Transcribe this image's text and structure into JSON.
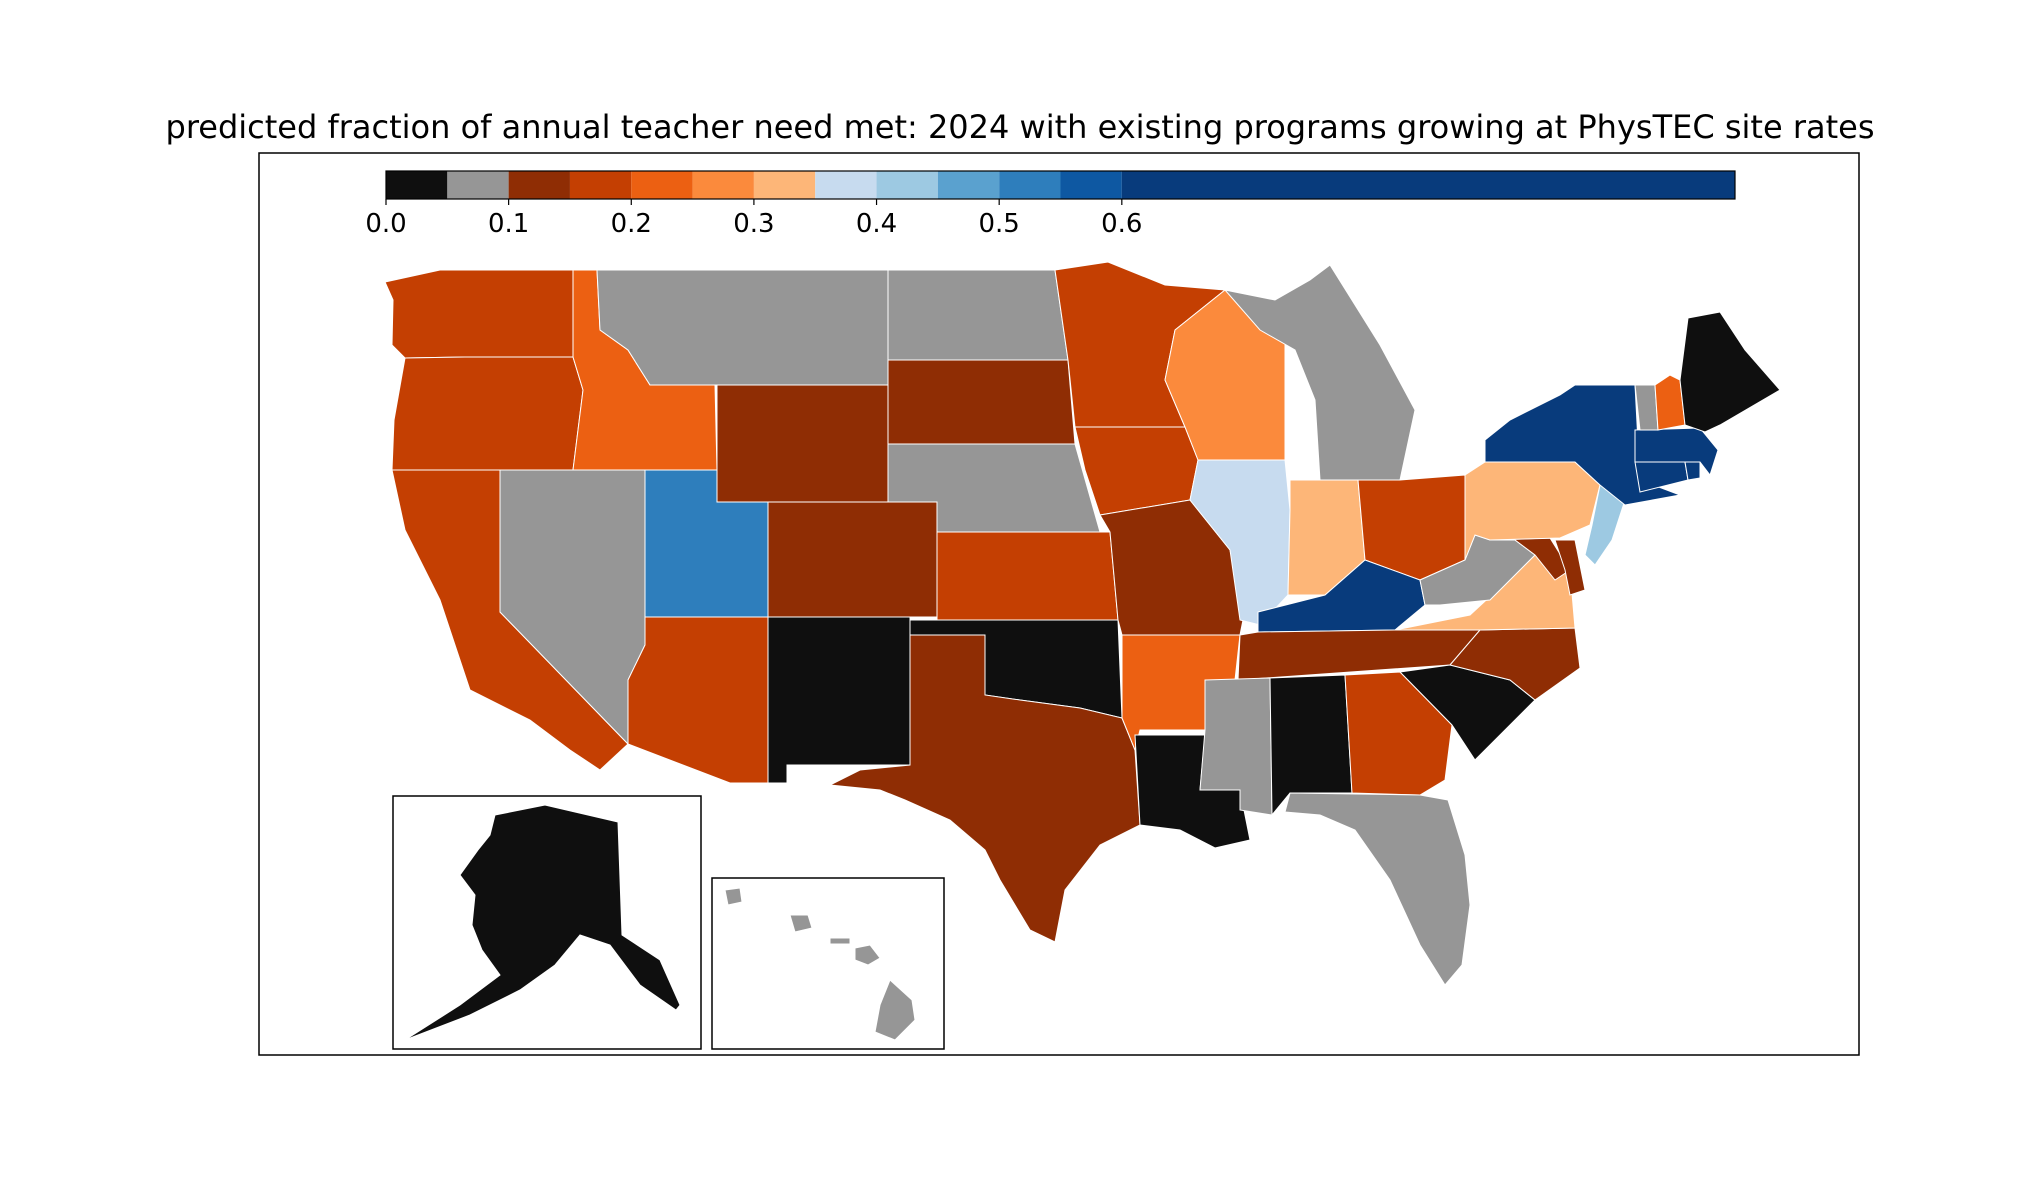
{
  "title": "predicted fraction of annual teacher need met: 2024 with existing programs growing at PhysTEC site rates",
  "colorbar": {
    "bins": [
      {
        "from": 0.0,
        "to": 0.05,
        "color": "#0f0f0f"
      },
      {
        "from": 0.05,
        "to": 0.1,
        "color": "#969696"
      },
      {
        "from": 0.1,
        "to": 0.15,
        "color": "#8f2d04"
      },
      {
        "from": 0.15,
        "to": 0.2,
        "color": "#c43f02"
      },
      {
        "from": 0.2,
        "to": 0.25,
        "color": "#ec6012"
      },
      {
        "from": 0.25,
        "to": 0.3,
        "color": "#fb8a3c"
      },
      {
        "from": 0.3,
        "to": 0.35,
        "color": "#fdb678"
      },
      {
        "from": 0.35,
        "to": 0.4,
        "color": "#c7dbef"
      },
      {
        "from": 0.4,
        "to": 0.45,
        "color": "#9dc9e2"
      },
      {
        "from": 0.45,
        "to": 0.5,
        "color": "#5aa1cf"
      },
      {
        "from": 0.5,
        "to": 0.55,
        "color": "#2e7ebc"
      },
      {
        "from": 0.55,
        "to": 0.6,
        "color": "#0e58a2"
      },
      {
        "from": 0.6,
        "to": 1.1,
        "color": "#083b7c"
      }
    ],
    "range": [
      0.0,
      1.1
    ],
    "ticks": [
      "0.0",
      "0.1",
      "0.2",
      "0.3",
      "0.4",
      "0.5",
      "0.6"
    ]
  },
  "map_data": {
    "units": "fraction of annual teacher need met",
    "states": [
      {
        "code": "WA",
        "value": 0.18
      },
      {
        "code": "OR",
        "value": 0.18
      },
      {
        "code": "CA",
        "value": 0.18
      },
      {
        "code": "ID",
        "value": 0.23
      },
      {
        "code": "NV",
        "value": 0.08
      },
      {
        "code": "MT",
        "value": 0.08
      },
      {
        "code": "WY",
        "value": 0.13
      },
      {
        "code": "UT",
        "value": 0.52
      },
      {
        "code": "AZ",
        "value": 0.18
      },
      {
        "code": "CO",
        "value": 0.13
      },
      {
        "code": "NM",
        "value": 0.02
      },
      {
        "code": "ND",
        "value": 0.08
      },
      {
        "code": "SD",
        "value": 0.13
      },
      {
        "code": "NE",
        "value": 0.08
      },
      {
        "code": "KS",
        "value": 0.18
      },
      {
        "code": "OK",
        "value": 0.02
      },
      {
        "code": "TX",
        "value": 0.13
      },
      {
        "code": "MN",
        "value": 0.18
      },
      {
        "code": "IA",
        "value": 0.18
      },
      {
        "code": "MO",
        "value": 0.13
      },
      {
        "code": "AR",
        "value": 0.23
      },
      {
        "code": "LA",
        "value": 0.02
      },
      {
        "code": "WI",
        "value": 0.28
      },
      {
        "code": "IL",
        "value": 0.37
      },
      {
        "code": "MI",
        "value": 0.08
      },
      {
        "code": "IN",
        "value": 0.32
      },
      {
        "code": "OH",
        "value": 0.18
      },
      {
        "code": "KY",
        "value": 0.65
      },
      {
        "code": "TN",
        "value": 0.13
      },
      {
        "code": "MS",
        "value": 0.08
      },
      {
        "code": "AL",
        "value": 0.02
      },
      {
        "code": "GA",
        "value": 0.18
      },
      {
        "code": "FL",
        "value": 0.08
      },
      {
        "code": "SC",
        "value": 0.02
      },
      {
        "code": "NC",
        "value": 0.13
      },
      {
        "code": "VA",
        "value": 0.32
      },
      {
        "code": "WV",
        "value": 0.08
      },
      {
        "code": "MD",
        "value": 0.13
      },
      {
        "code": "DE",
        "value": 0.13
      },
      {
        "code": "PA",
        "value": 0.32
      },
      {
        "code": "NJ",
        "value": 0.42
      },
      {
        "code": "NY",
        "value": 0.65
      },
      {
        "code": "CT",
        "value": 0.65
      },
      {
        "code": "RI",
        "value": 0.65
      },
      {
        "code": "MA",
        "value": 0.65
      },
      {
        "code": "VT",
        "value": 0.08
      },
      {
        "code": "NH",
        "value": 0.23
      },
      {
        "code": "ME",
        "value": 0.02
      },
      {
        "code": "AK",
        "value": 0.02
      },
      {
        "code": "HI",
        "value": 0.08
      }
    ]
  }
}
